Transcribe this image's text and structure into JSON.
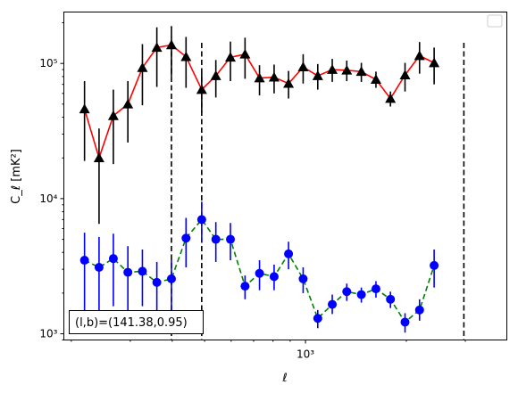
{
  "chart_data": {
    "type": "scatter",
    "xlabel": "ℓ",
    "ylabel": "C_ℓ  [mK²]",
    "x_scale": "log",
    "y_scale": "log",
    "xlim": [
      190,
      3990
    ],
    "ylim": [
      900,
      240000
    ],
    "x_tick_labels": [
      {
        "value": 1000,
        "label": "10³"
      }
    ],
    "y_tick_labels": [
      {
        "value": 1000,
        "label": "10³"
      },
      {
        "value": 10000,
        "label": "10⁴"
      },
      {
        "value": 100000,
        "label": "10⁵"
      }
    ],
    "grid": false,
    "legend": "top-right, empty",
    "vlines": [
      398,
      490,
      2970
    ],
    "annotation": "(l,b)=(141.38,0.95)",
    "x": [
      219,
      242,
      267,
      295,
      326,
      360,
      398,
      440,
      490,
      540,
      597,
      660,
      729,
      806,
      890,
      984,
      1088,
      1202,
      1328,
      1468,
      1623,
      1793,
      1982,
      2190,
      2421,
      2676,
      2970,
      3281,
      3627
    ],
    "series": [
      {
        "color": "#ff0000",
        "marker": "triangle",
        "marker_color": "#000000",
        "errorbar_color": "#000000",
        "linestyle": "solid",
        "values": [
          46000,
          20000,
          41000,
          50000,
          93000,
          131000,
          137000,
          112000,
          64000,
          81000,
          111000,
          117000,
          78000,
          79000,
          71000,
          94000,
          81000,
          90000,
          89000,
          87000,
          76000,
          55000,
          82000,
          114000,
          101000
        ],
        "err_low": [
          27000,
          13500,
          23000,
          24000,
          44000,
          64000,
          57000,
          46000,
          21000,
          25000,
          37000,
          40000,
          20000,
          19000,
          16000,
          23000,
          17000,
          17000,
          15000,
          14000,
          10000,
          7000,
          20000,
          30000,
          31000
        ],
        "err_high": [
          28000,
          13000,
          23000,
          24000,
          46000,
          54000,
          52000,
          45000,
          21000,
          25000,
          34000,
          38000,
          19000,
          19000,
          17000,
          23000,
          18000,
          18000,
          16000,
          14000,
          11000,
          7000,
          19000,
          30000,
          30000
        ],
        "x_index_offset": 0,
        "x_values": [
          219,
          242,
          267,
          295,
          326,
          360,
          398,
          440,
          490,
          540,
          597,
          660,
          729,
          806,
          890,
          984,
          1088,
          1202,
          1328,
          1468,
          1623,
          1793,
          1982,
          2190,
          2421
        ]
      },
      {
        "color": "#008000",
        "marker": "circle",
        "marker_color": "#0000ff",
        "errorbar_color": "#0000ff",
        "linestyle": "dashed",
        "values": [
          3500,
          3100,
          3600,
          2850,
          2900,
          2400,
          2550,
          5100,
          7000,
          5000,
          5000,
          2250,
          2800,
          2650,
          3900,
          2550,
          1300,
          1650,
          2050,
          1950,
          2150,
          1800,
          1220,
          1500,
          3200
        ],
        "err_low": [
          2200,
          1800,
          2000,
          1500,
          1300,
          1000,
          1200,
          2000,
          2200,
          1600,
          1500,
          450,
          700,
          550,
          900,
          550,
          200,
          250,
          300,
          250,
          300,
          250,
          200,
          250,
          1000
        ],
        "err_high": [
          2100,
          2100,
          1900,
          1600,
          1300,
          1000,
          1000,
          2100,
          2500,
          1700,
          1600,
          450,
          700,
          600,
          900,
          550,
          200,
          300,
          300,
          250,
          300,
          250,
          200,
          300,
          1000
        ],
        "x_values": [
          219,
          242,
          267,
          295,
          326,
          360,
          398,
          440,
          490,
          540,
          597,
          660,
          729,
          806,
          890,
          984,
          1088,
          1202,
          1328,
          1468,
          1623,
          1793,
          1982,
          2190,
          2421
        ]
      }
    ]
  }
}
